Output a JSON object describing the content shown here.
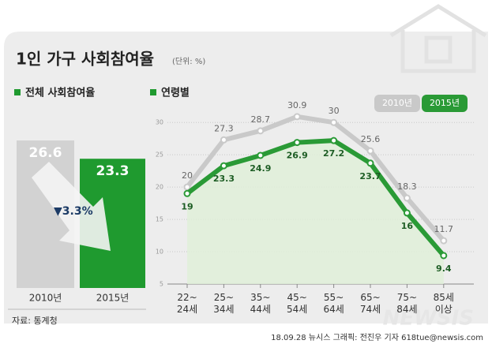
{
  "header": {
    "title": "1인 가구 사회참여율",
    "unit": "(단위: %)"
  },
  "chart_data": [
    {
      "type": "bar",
      "title": "전체 사회참여율",
      "categories": [
        "2010년",
        "2015년"
      ],
      "values": [
        26.6,
        23.3
      ],
      "colors": [
        "#d2d2d2",
        "#1f9a2f"
      ],
      "annotation": "▼3.3%"
    },
    {
      "type": "line",
      "title": "연령별",
      "categories": [
        "22~\n24세",
        "25~\n34세",
        "35~\n44세",
        "45~\n54세",
        "55~\n64세",
        "65~\n74세",
        "75~\n84세",
        "85세\n이상"
      ],
      "series": [
        {
          "name": "2010년",
          "color": "#c9c9c9",
          "values": [
            20.0,
            27.3,
            28.7,
            30.9,
            30.0,
            25.6,
            18.3,
            11.7
          ]
        },
        {
          "name": "2015년",
          "color": "#2a9a36",
          "values": [
            19.0,
            23.3,
            24.9,
            26.9,
            27.2,
            23.7,
            16.0,
            9.4
          ]
        }
      ],
      "ylim": [
        5,
        31
      ],
      "yticks": [
        5,
        10,
        15,
        20,
        25,
        30
      ],
      "grid": true,
      "legend": "top-right"
    }
  ],
  "footer": {
    "source": "자료: 통계청",
    "credit": "18.09.28 뉴시스 그래픽: 전진우 기자 618tue@newsis.com",
    "watermark": "NEWSIS"
  }
}
